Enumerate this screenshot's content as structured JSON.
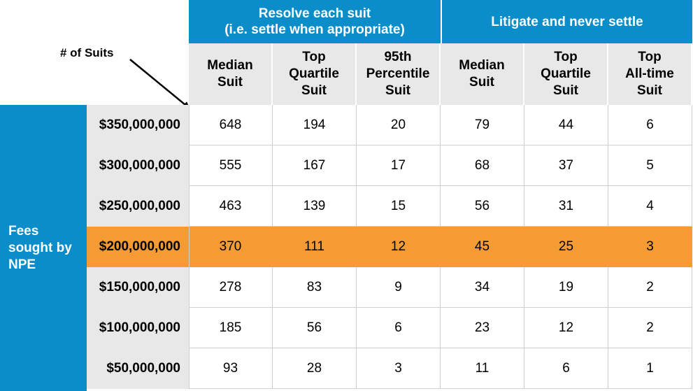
{
  "chart_data": {
    "type": "table",
    "annotation": "# of Suits",
    "row_axis_label": "Fees sought by NPE",
    "groups": [
      {
        "label": "Resolve each suit\n(i.e. settle when appropriate)",
        "span": 3
      },
      {
        "label": "Litigate and never settle",
        "span": 3
      }
    ],
    "columns": [
      "Median\nSuit",
      "Top\nQuartile\nSuit",
      "95th\nPercentile\nSuit",
      "Median\nSuit",
      "Top\nQuartile\nSuit",
      "Top\nAll-time\nSuit"
    ],
    "rows": [
      {
        "label": "$350,000,000",
        "values": [
          648,
          194,
          20,
          79,
          44,
          6
        ],
        "highlight": false
      },
      {
        "label": "$300,000,000",
        "values": [
          555,
          167,
          17,
          68,
          37,
          5
        ],
        "highlight": false
      },
      {
        "label": "$250,000,000",
        "values": [
          463,
          139,
          15,
          56,
          31,
          4
        ],
        "highlight": false
      },
      {
        "label": "$200,000,000",
        "values": [
          370,
          111,
          12,
          45,
          25,
          3
        ],
        "highlight": true
      },
      {
        "label": "$150,000,000",
        "values": [
          278,
          83,
          9,
          34,
          19,
          2
        ],
        "highlight": false
      },
      {
        "label": "$100,000,000",
        "values": [
          185,
          56,
          6,
          23,
          12,
          2
        ],
        "highlight": false
      },
      {
        "label": "$50,000,000",
        "values": [
          93,
          28,
          3,
          11,
          6,
          1
        ],
        "highlight": false
      }
    ]
  },
  "colors": {
    "header_blue": "#0b8dc9",
    "header_gray": "#e8e8e8",
    "highlight_orange": "#f49b34"
  }
}
